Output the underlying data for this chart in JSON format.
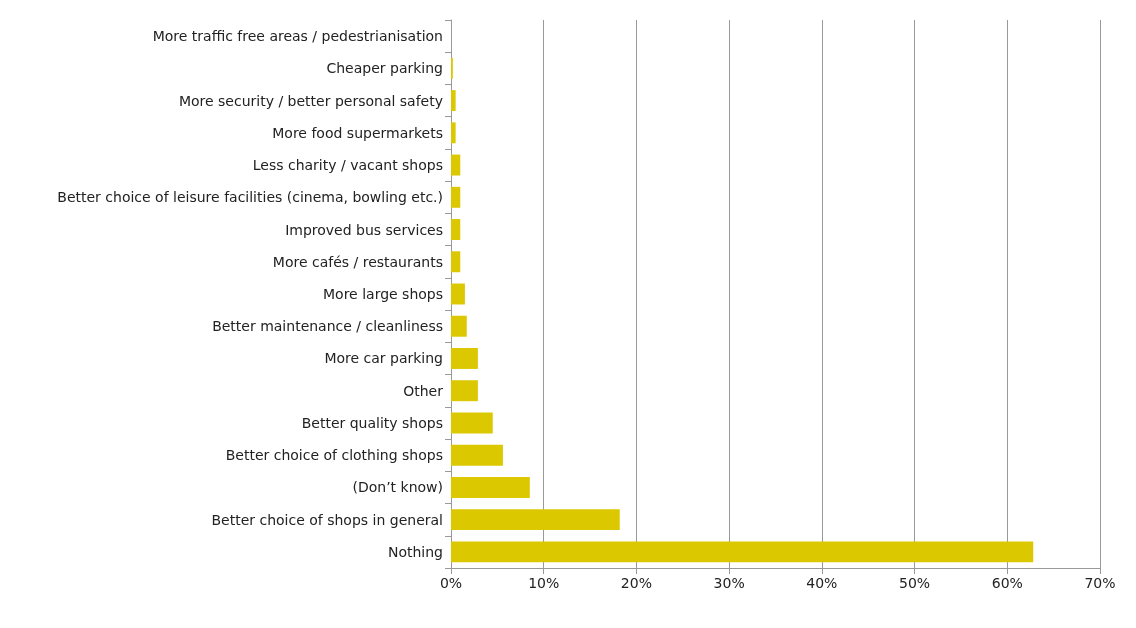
{
  "chart_data": {
    "type": "bar",
    "orientation": "horizontal",
    "categories": [
      "More traffic free areas / pedestrianisation",
      "Cheaper parking",
      "More security / better personal safety",
      "More food supermarkets",
      "Less charity / vacant shops",
      "Better choice of leisure facilities (cinema, bowling etc.)",
      "Improved bus services",
      "More cafés / restaurants",
      "More large shops",
      "Better maintenance / cleanliness",
      "More car parking",
      "Other",
      "Better quality shops",
      "Better choice of clothing shops",
      "(Don’t know)",
      "Better choice of shops in general",
      "Nothing"
    ],
    "values": [
      0,
      0.2,
      0.5,
      0.5,
      1,
      1,
      1,
      1,
      1.5,
      1.7,
      2.9,
      2.9,
      4.5,
      5.6,
      8.5,
      18.2,
      62.8
    ],
    "color": "#dcc800",
    "xlim": [
      0,
      70
    ],
    "xticks": [
      {
        "value": 0,
        "label": "0%"
      },
      {
        "value": 10,
        "label": "10%"
      },
      {
        "value": 20,
        "label": "20%"
      },
      {
        "value": 30,
        "label": "30%"
      },
      {
        "value": 40,
        "label": "40%"
      },
      {
        "value": 50,
        "label": "50%"
      },
      {
        "value": 60,
        "label": "60%"
      },
      {
        "value": 70,
        "label": "70%"
      }
    ],
    "grid": "x"
  }
}
